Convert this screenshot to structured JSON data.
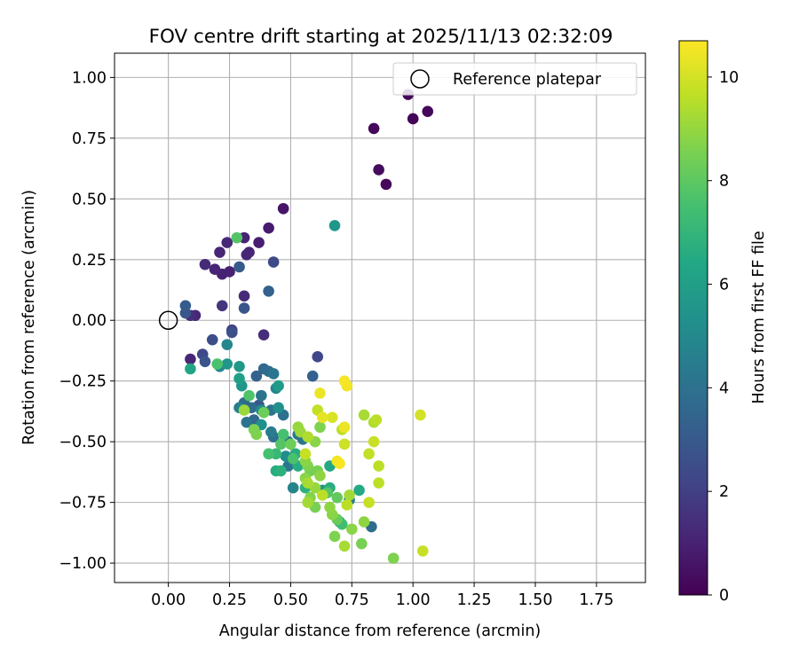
{
  "chart_data": {
    "type": "scatter",
    "title": "FOV centre drift starting at 2025/11/13 02:32:09",
    "xlabel": "Angular distance from reference (arcmin)",
    "ylabel": "Rotation from reference (arcmin)",
    "xlim": [
      -0.22,
      1.95
    ],
    "ylim": [
      -1.08,
      1.1
    ],
    "xticks": [
      0.0,
      0.25,
      0.5,
      0.75,
      1.0,
      1.25,
      1.5,
      1.75
    ],
    "xtick_labels": [
      "0.00",
      "0.25",
      "0.50",
      "0.75",
      "1.00",
      "1.25",
      "1.50",
      "1.75"
    ],
    "yticks": [
      1.0,
      0.75,
      0.5,
      0.25,
      0.0,
      -0.25,
      -0.5,
      -0.75,
      -1.0
    ],
    "ytick_labels": [
      "1.00",
      "0.75",
      "0.50",
      "0.25",
      "0.00",
      "−0.25",
      "−0.50",
      "−0.75",
      "−1.00"
    ],
    "grid": true,
    "legend": {
      "position": "top-right",
      "entries": [
        "Reference platepar"
      ]
    },
    "reference_point": {
      "label": "Reference platepar",
      "x": 0.0,
      "y": 0.0
    },
    "colorbar": {
      "label": "Hours from first FF file",
      "colormap": "viridis",
      "range": [
        0,
        10.7
      ],
      "ticks": [
        0,
        2,
        4,
        6,
        8,
        10
      ],
      "tick_labels": [
        "0",
        "2",
        "4",
        "6",
        "8",
        "10"
      ]
    },
    "series": [
      {
        "name": "FOV centre drift",
        "points": [
          {
            "x": 0.98,
            "y": 0.93,
            "h": 0.1
          },
          {
            "x": 1.06,
            "y": 0.86,
            "h": 0.2
          },
          {
            "x": 1.0,
            "y": 0.83,
            "h": 0.1
          },
          {
            "x": 0.84,
            "y": 0.79,
            "h": 0.2
          },
          {
            "x": 0.86,
            "y": 0.62,
            "h": 0.3
          },
          {
            "x": 0.89,
            "y": 0.56,
            "h": 0.2
          },
          {
            "x": 0.47,
            "y": 0.46,
            "h": 0.6
          },
          {
            "x": 0.41,
            "y": 0.38,
            "h": 0.8
          },
          {
            "x": 0.31,
            "y": 0.34,
            "h": 1.0
          },
          {
            "x": 0.24,
            "y": 0.32,
            "h": 1.2
          },
          {
            "x": 0.37,
            "y": 0.32,
            "h": 0.9
          },
          {
            "x": 0.33,
            "y": 0.28,
            "h": 1.1
          },
          {
            "x": 0.32,
            "y": 0.27,
            "h": 1.2
          },
          {
            "x": 0.21,
            "y": 0.28,
            "h": 1.1
          },
          {
            "x": 0.43,
            "y": 0.24,
            "h": 2.4
          },
          {
            "x": 0.15,
            "y": 0.23,
            "h": 1.3
          },
          {
            "x": 0.19,
            "y": 0.21,
            "h": 1.1
          },
          {
            "x": 0.22,
            "y": 0.19,
            "h": 1.0
          },
          {
            "x": 0.25,
            "y": 0.2,
            "h": 1.0
          },
          {
            "x": 0.29,
            "y": 0.22,
            "h": 3.0
          },
          {
            "x": 0.28,
            "y": 0.34,
            "h": 7.8
          },
          {
            "x": 0.68,
            "y": 0.39,
            "h": 5.6
          },
          {
            "x": 0.41,
            "y": 0.12,
            "h": 3.3
          },
          {
            "x": 0.31,
            "y": 0.1,
            "h": 1.3
          },
          {
            "x": 0.22,
            "y": 0.06,
            "h": 1.6
          },
          {
            "x": 0.31,
            "y": 0.05,
            "h": 2.8
          },
          {
            "x": 0.07,
            "y": 0.06,
            "h": 3.1
          },
          {
            "x": 0.07,
            "y": 0.03,
            "h": 2.9
          },
          {
            "x": 0.11,
            "y": 0.02,
            "h": 1.2
          },
          {
            "x": 0.09,
            "y": 0.02,
            "h": 1.4
          },
          {
            "x": 0.26,
            "y": -0.04,
            "h": 2.0
          },
          {
            "x": 0.26,
            "y": -0.05,
            "h": 2.6
          },
          {
            "x": 0.39,
            "y": -0.06,
            "h": 1.4
          },
          {
            "x": 0.18,
            "y": -0.08,
            "h": 2.5
          },
          {
            "x": 0.24,
            "y": -0.1,
            "h": 4.9
          },
          {
            "x": 0.09,
            "y": -0.16,
            "h": 1.2
          },
          {
            "x": 0.14,
            "y": -0.14,
            "h": 2.3
          },
          {
            "x": 0.15,
            "y": -0.17,
            "h": 2.8
          },
          {
            "x": 0.09,
            "y": -0.2,
            "h": 6.3
          },
          {
            "x": 0.2,
            "y": -0.18,
            "h": 7.6
          },
          {
            "x": 0.21,
            "y": -0.19,
            "h": 4.9
          },
          {
            "x": 0.24,
            "y": -0.18,
            "h": 5.6
          },
          {
            "x": 0.29,
            "y": -0.19,
            "h": 5.7
          },
          {
            "x": 0.61,
            "y": -0.15,
            "h": 2.3
          },
          {
            "x": 0.59,
            "y": -0.23,
            "h": 3.3
          },
          {
            "x": 0.39,
            "y": -0.2,
            "h": 3.6
          },
          {
            "x": 0.41,
            "y": -0.21,
            "h": 3.8
          },
          {
            "x": 0.43,
            "y": -0.22,
            "h": 4.2
          },
          {
            "x": 0.36,
            "y": -0.23,
            "h": 3.3
          },
          {
            "x": 0.29,
            "y": -0.24,
            "h": 6.0
          },
          {
            "x": 0.3,
            "y": -0.27,
            "h": 5.6
          },
          {
            "x": 0.45,
            "y": -0.27,
            "h": 5.8
          },
          {
            "x": 0.44,
            "y": -0.28,
            "h": 4.9
          },
          {
            "x": 0.38,
            "y": -0.31,
            "h": 4.1
          },
          {
            "x": 0.33,
            "y": -0.31,
            "h": 7.7
          },
          {
            "x": 0.31,
            "y": -0.34,
            "h": 3.7
          },
          {
            "x": 0.29,
            "y": -0.36,
            "h": 4.6
          },
          {
            "x": 0.37,
            "y": -0.35,
            "h": 2.9
          },
          {
            "x": 0.38,
            "y": -0.37,
            "h": 5.1
          },
          {
            "x": 0.39,
            "y": -0.38,
            "h": 8.3
          },
          {
            "x": 0.34,
            "y": -0.36,
            "h": 3.8
          },
          {
            "x": 0.42,
            "y": -0.37,
            "h": 4.1
          },
          {
            "x": 0.45,
            "y": -0.36,
            "h": 5.3
          },
          {
            "x": 0.47,
            "y": -0.39,
            "h": 4.0
          },
          {
            "x": 0.31,
            "y": -0.37,
            "h": 9.1
          },
          {
            "x": 0.32,
            "y": -0.42,
            "h": 4.1
          },
          {
            "x": 0.35,
            "y": -0.41,
            "h": 3.6
          },
          {
            "x": 0.38,
            "y": -0.43,
            "h": 5.3
          },
          {
            "x": 0.35,
            "y": -0.45,
            "h": 8.6
          },
          {
            "x": 0.36,
            "y": -0.47,
            "h": 8.6
          },
          {
            "x": 0.42,
            "y": -0.46,
            "h": 4.4
          },
          {
            "x": 0.43,
            "y": -0.48,
            "h": 4.0
          },
          {
            "x": 0.47,
            "y": -0.47,
            "h": 7.5
          },
          {
            "x": 0.46,
            "y": -0.51,
            "h": 7.8
          },
          {
            "x": 0.49,
            "y": -0.5,
            "h": 4.0
          },
          {
            "x": 0.53,
            "y": -0.47,
            "h": 4.2
          },
          {
            "x": 0.55,
            "y": -0.49,
            "h": 4.1
          },
          {
            "x": 0.52,
            "y": -0.55,
            "h": 6.6
          },
          {
            "x": 0.5,
            "y": -0.51,
            "h": 8.3
          },
          {
            "x": 0.53,
            "y": -0.44,
            "h": 9.0
          },
          {
            "x": 0.54,
            "y": -0.46,
            "h": 9.1
          },
          {
            "x": 0.57,
            "y": -0.48,
            "h": 9.4
          },
          {
            "x": 0.6,
            "y": -0.5,
            "h": 8.8
          },
          {
            "x": 0.56,
            "y": -0.55,
            "h": 9.8
          },
          {
            "x": 0.41,
            "y": -0.55,
            "h": 7.5
          },
          {
            "x": 0.44,
            "y": -0.55,
            "h": 7.1
          },
          {
            "x": 0.48,
            "y": -0.56,
            "h": 5.2
          },
          {
            "x": 0.51,
            "y": -0.57,
            "h": 7.6
          },
          {
            "x": 0.49,
            "y": -0.6,
            "h": 4.2
          },
          {
            "x": 0.53,
            "y": -0.6,
            "h": 6.6
          },
          {
            "x": 0.44,
            "y": -0.62,
            "h": 6.6
          },
          {
            "x": 0.46,
            "y": -0.62,
            "h": 6.8
          },
          {
            "x": 0.56,
            "y": -0.58,
            "h": 8.8
          },
          {
            "x": 0.57,
            "y": -0.6,
            "h": 8.6
          },
          {
            "x": 0.58,
            "y": -0.62,
            "h": 8.4
          },
          {
            "x": 0.61,
            "y": -0.62,
            "h": 8.5
          },
          {
            "x": 0.62,
            "y": -0.64,
            "h": 8.9
          },
          {
            "x": 0.66,
            "y": -0.6,
            "h": 6.4
          },
          {
            "x": 0.69,
            "y": -0.58,
            "h": 10.5
          },
          {
            "x": 0.51,
            "y": -0.69,
            "h": 4.8
          },
          {
            "x": 0.56,
            "y": -0.65,
            "h": 8.8
          },
          {
            "x": 0.57,
            "y": -0.67,
            "h": 9.3
          },
          {
            "x": 0.56,
            "y": -0.69,
            "h": 6.8
          },
          {
            "x": 0.6,
            "y": -0.69,
            "h": 9.0
          },
          {
            "x": 0.63,
            "y": -0.7,
            "h": 5.4
          },
          {
            "x": 0.66,
            "y": -0.69,
            "h": 6.7
          },
          {
            "x": 0.65,
            "y": -0.71,
            "h": 7.8
          },
          {
            "x": 0.69,
            "y": -0.73,
            "h": 8.1
          },
          {
            "x": 0.58,
            "y": -0.73,
            "h": 8.7
          },
          {
            "x": 0.57,
            "y": -0.75,
            "h": 9.2
          },
          {
            "x": 0.6,
            "y": -0.77,
            "h": 8.5
          },
          {
            "x": 0.63,
            "y": -0.72,
            "h": 9.6
          },
          {
            "x": 0.74,
            "y": -0.72,
            "h": 9.2
          },
          {
            "x": 0.73,
            "y": -0.76,
            "h": 9.6
          },
          {
            "x": 0.66,
            "y": -0.77,
            "h": 8.9
          },
          {
            "x": 0.67,
            "y": -0.8,
            "h": 8.8
          },
          {
            "x": 0.69,
            "y": -0.82,
            "h": 8.2
          },
          {
            "x": 0.7,
            "y": -0.83,
            "h": 5.8
          },
          {
            "x": 0.71,
            "y": -0.84,
            "h": 7.4
          },
          {
            "x": 0.74,
            "y": -0.74,
            "h": 4.5
          },
          {
            "x": 0.78,
            "y": -0.7,
            "h": 6.5
          },
          {
            "x": 0.82,
            "y": -0.75,
            "h": 9.8
          },
          {
            "x": 0.8,
            "y": -0.83,
            "h": 8.9
          },
          {
            "x": 0.83,
            "y": -0.85,
            "h": 3.8
          },
          {
            "x": 0.75,
            "y": -0.86,
            "h": 8.8
          },
          {
            "x": 0.68,
            "y": -0.89,
            "h": 8.6
          },
          {
            "x": 0.79,
            "y": -0.92,
            "h": 8.5
          },
          {
            "x": 0.72,
            "y": -0.93,
            "h": 9.3
          },
          {
            "x": 0.92,
            "y": -0.98,
            "h": 8.6
          },
          {
            "x": 1.04,
            "y": -0.95,
            "h": 9.8
          },
          {
            "x": 0.72,
            "y": -0.25,
            "h": 10.6
          },
          {
            "x": 0.73,
            "y": -0.27,
            "h": 10.5
          },
          {
            "x": 0.62,
            "y": -0.3,
            "h": 10.4
          },
          {
            "x": 0.61,
            "y": -0.37,
            "h": 9.7
          },
          {
            "x": 0.63,
            "y": -0.4,
            "h": 10.3
          },
          {
            "x": 0.67,
            "y": -0.4,
            "h": 10.1
          },
          {
            "x": 0.62,
            "y": -0.44,
            "h": 8.6
          },
          {
            "x": 0.71,
            "y": -0.45,
            "h": 9.6
          },
          {
            "x": 0.72,
            "y": -0.44,
            "h": 10.4
          },
          {
            "x": 0.72,
            "y": -0.51,
            "h": 9.9
          },
          {
            "x": 0.7,
            "y": -0.59,
            "h": 10.6
          },
          {
            "x": 0.8,
            "y": -0.39,
            "h": 9.3
          },
          {
            "x": 0.84,
            "y": -0.42,
            "h": 9.4
          },
          {
            "x": 0.85,
            "y": -0.41,
            "h": 9.6
          },
          {
            "x": 0.84,
            "y": -0.5,
            "h": 9.8
          },
          {
            "x": 0.82,
            "y": -0.55,
            "h": 9.7
          },
          {
            "x": 0.86,
            "y": -0.6,
            "h": 9.6
          },
          {
            "x": 0.86,
            "y": -0.67,
            "h": 9.6
          },
          {
            "x": 1.03,
            "y": -0.39,
            "h": 10.0
          }
        ]
      }
    ]
  }
}
